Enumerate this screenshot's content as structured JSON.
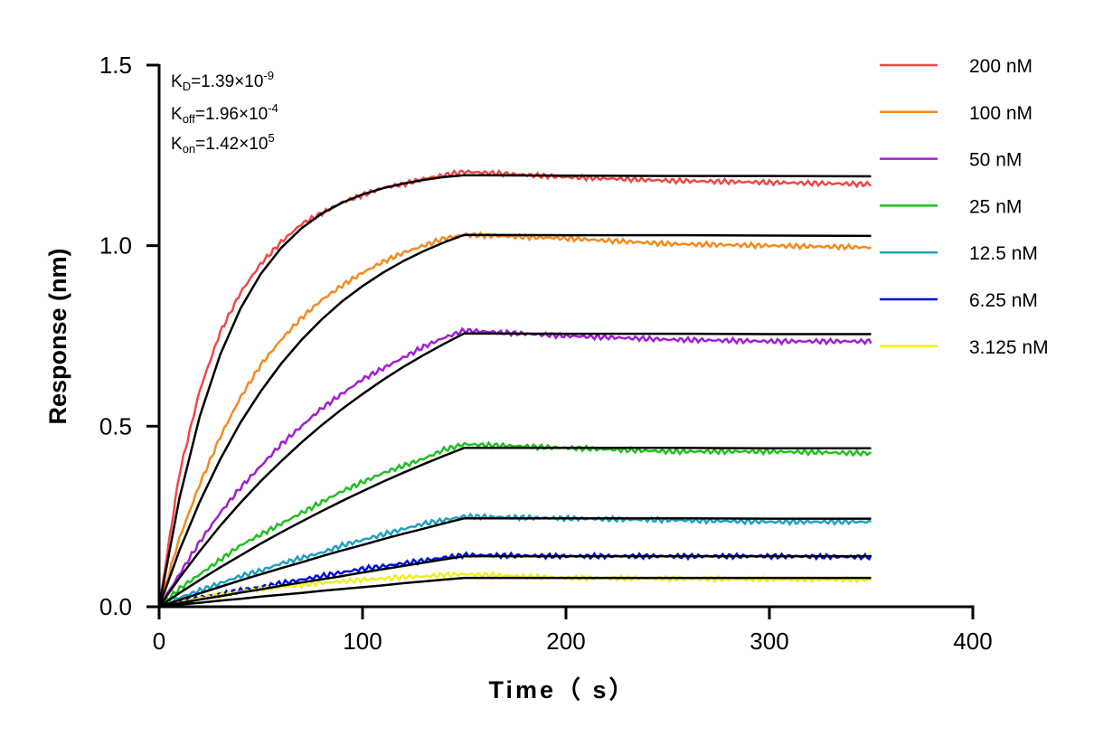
{
  "chart_data": {
    "type": "line",
    "title": "",
    "xlabel": "Time（ s）",
    "ylabel": "Response (nm)",
    "xlim": [
      0,
      400
    ],
    "ylim": [
      0,
      1.5
    ],
    "x_ticks": [
      "0",
      "100",
      "200",
      "300",
      "400"
    ],
    "y_ticks": [
      "0.0",
      "0.5",
      "1.0",
      "1.5"
    ],
    "grid": false,
    "legend_position": "top-right",
    "annotations": {
      "kd": {
        "sym": "K",
        "sub": "D",
        "val": "=1.39×10",
        "exp": "-9"
      },
      "koff": {
        "sym": "K",
        "sub": "off",
        "val": "=1.96×10",
        "exp": "-4"
      },
      "kon": {
        "sym": "K",
        "sub": "on",
        "val": "=1.42×10",
        "exp": "5"
      }
    },
    "x": [
      0,
      10,
      20,
      30,
      40,
      50,
      60,
      70,
      80,
      90,
      100,
      110,
      120,
      130,
      140,
      150,
      200,
      250,
      300,
      350
    ],
    "series": [
      {
        "name": "200 nM",
        "color": "#F04848",
        "values": [
          0,
          0.37,
          0.6,
          0.76,
          0.87,
          0.95,
          1.01,
          1.06,
          1.09,
          1.12,
          1.14,
          1.16,
          1.17,
          1.185,
          1.195,
          1.205,
          1.19,
          1.18,
          1.175,
          1.17
        ],
        "fit": [
          0,
          0.301,
          0.528,
          0.698,
          0.826,
          0.922,
          0.994,
          1.048,
          1.089,
          1.119,
          1.142,
          1.159,
          1.172,
          1.182,
          1.19,
          1.195,
          1.194,
          1.193,
          1.193,
          1.192
        ]
      },
      {
        "name": "100 nM",
        "color": "#F58A1F",
        "values": [
          0,
          0.19,
          0.34,
          0.47,
          0.58,
          0.67,
          0.74,
          0.8,
          0.85,
          0.89,
          0.925,
          0.955,
          0.98,
          1.0,
          1.02,
          1.03,
          1.02,
          1.005,
          1.0,
          0.995
        ],
        "fit": [
          0,
          0.156,
          0.291,
          0.408,
          0.51,
          0.597,
          0.673,
          0.739,
          0.796,
          0.846,
          0.888,
          0.925,
          0.957,
          0.985,
          1.009,
          1.03,
          1.029,
          1.029,
          1.028,
          1.027
        ]
      },
      {
        "name": "50 nM",
        "color": "#A020D0",
        "values": [
          0,
          0.09,
          0.18,
          0.26,
          0.33,
          0.39,
          0.45,
          0.5,
          0.55,
          0.59,
          0.63,
          0.66,
          0.69,
          0.72,
          0.745,
          0.765,
          0.75,
          0.74,
          0.735,
          0.735
        ],
        "fit": [
          0,
          0.08,
          0.154,
          0.224,
          0.288,
          0.348,
          0.403,
          0.455,
          0.503,
          0.548,
          0.589,
          0.628,
          0.664,
          0.697,
          0.728,
          0.757,
          0.756,
          0.756,
          0.755,
          0.755
        ]
      },
      {
        "name": "25 nM",
        "color": "#20C020",
        "values": [
          0,
          0.05,
          0.09,
          0.13,
          0.17,
          0.2,
          0.23,
          0.26,
          0.29,
          0.32,
          0.345,
          0.37,
          0.39,
          0.41,
          0.435,
          0.45,
          0.44,
          0.43,
          0.43,
          0.425
        ],
        "fit": [
          0,
          0.038,
          0.074,
          0.109,
          0.142,
          0.175,
          0.206,
          0.236,
          0.265,
          0.293,
          0.32,
          0.346,
          0.371,
          0.395,
          0.418,
          0.44,
          0.44,
          0.44,
          0.439,
          0.439
        ]
      },
      {
        "name": "12.5 nM",
        "color": "#20A0C0",
        "values": [
          0,
          0.025,
          0.045,
          0.065,
          0.085,
          0.1,
          0.12,
          0.135,
          0.15,
          0.17,
          0.185,
          0.2,
          0.215,
          0.23,
          0.24,
          0.25,
          0.245,
          0.24,
          0.235,
          0.235
        ],
        "fit": [
          0,
          0.019,
          0.037,
          0.055,
          0.073,
          0.09,
          0.107,
          0.123,
          0.14,
          0.156,
          0.171,
          0.187,
          0.202,
          0.216,
          0.231,
          0.245,
          0.245,
          0.245,
          0.244,
          0.244
        ]
      },
      {
        "name": "6.25 nM",
        "color": "#0010E0",
        "values": [
          0,
          0.012,
          0.025,
          0.035,
          0.045,
          0.055,
          0.065,
          0.075,
          0.085,
          0.095,
          0.105,
          0.112,
          0.12,
          0.128,
          0.136,
          0.143,
          0.14,
          0.14,
          0.14,
          0.138
        ],
        "fit": [
          0,
          0.01,
          0.02,
          0.029,
          0.039,
          0.048,
          0.058,
          0.067,
          0.076,
          0.085,
          0.095,
          0.104,
          0.113,
          0.122,
          0.131,
          0.14,
          0.14,
          0.14,
          0.14,
          0.14
        ]
      },
      {
        "name": "3.125 nM",
        "color": "#F0F020",
        "values": [
          0,
          0.012,
          0.024,
          0.033,
          0.042,
          0.05,
          0.055,
          0.06,
          0.066,
          0.07,
          0.075,
          0.078,
          0.082,
          0.084,
          0.088,
          0.09,
          0.08,
          0.078,
          0.076,
          0.075
        ],
        "fit": [
          0,
          0.006,
          0.011,
          0.017,
          0.022,
          0.028,
          0.033,
          0.038,
          0.044,
          0.049,
          0.054,
          0.059,
          0.065,
          0.07,
          0.075,
          0.08,
          0.08,
          0.08,
          0.08,
          0.08
        ]
      }
    ]
  }
}
